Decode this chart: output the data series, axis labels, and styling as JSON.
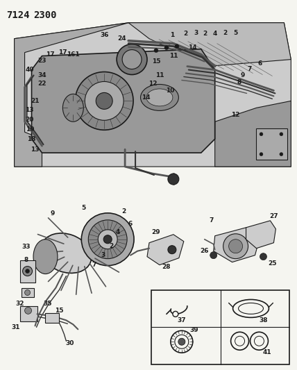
{
  "title_code": "7124  2300",
  "bg_color": "#f0ede8",
  "line_color": "#1a1a1a",
  "title_fontsize": 10,
  "label_fontsize": 6.5,
  "fig_width": 4.28,
  "fig_height": 5.33,
  "dpi": 100,
  "gray1": "#888888",
  "gray2": "#555555",
  "gray3": "#333333",
  "gray_light": "#bbbbbb",
  "gray_bg": "#cccccc",
  "white": "#f5f5f0"
}
